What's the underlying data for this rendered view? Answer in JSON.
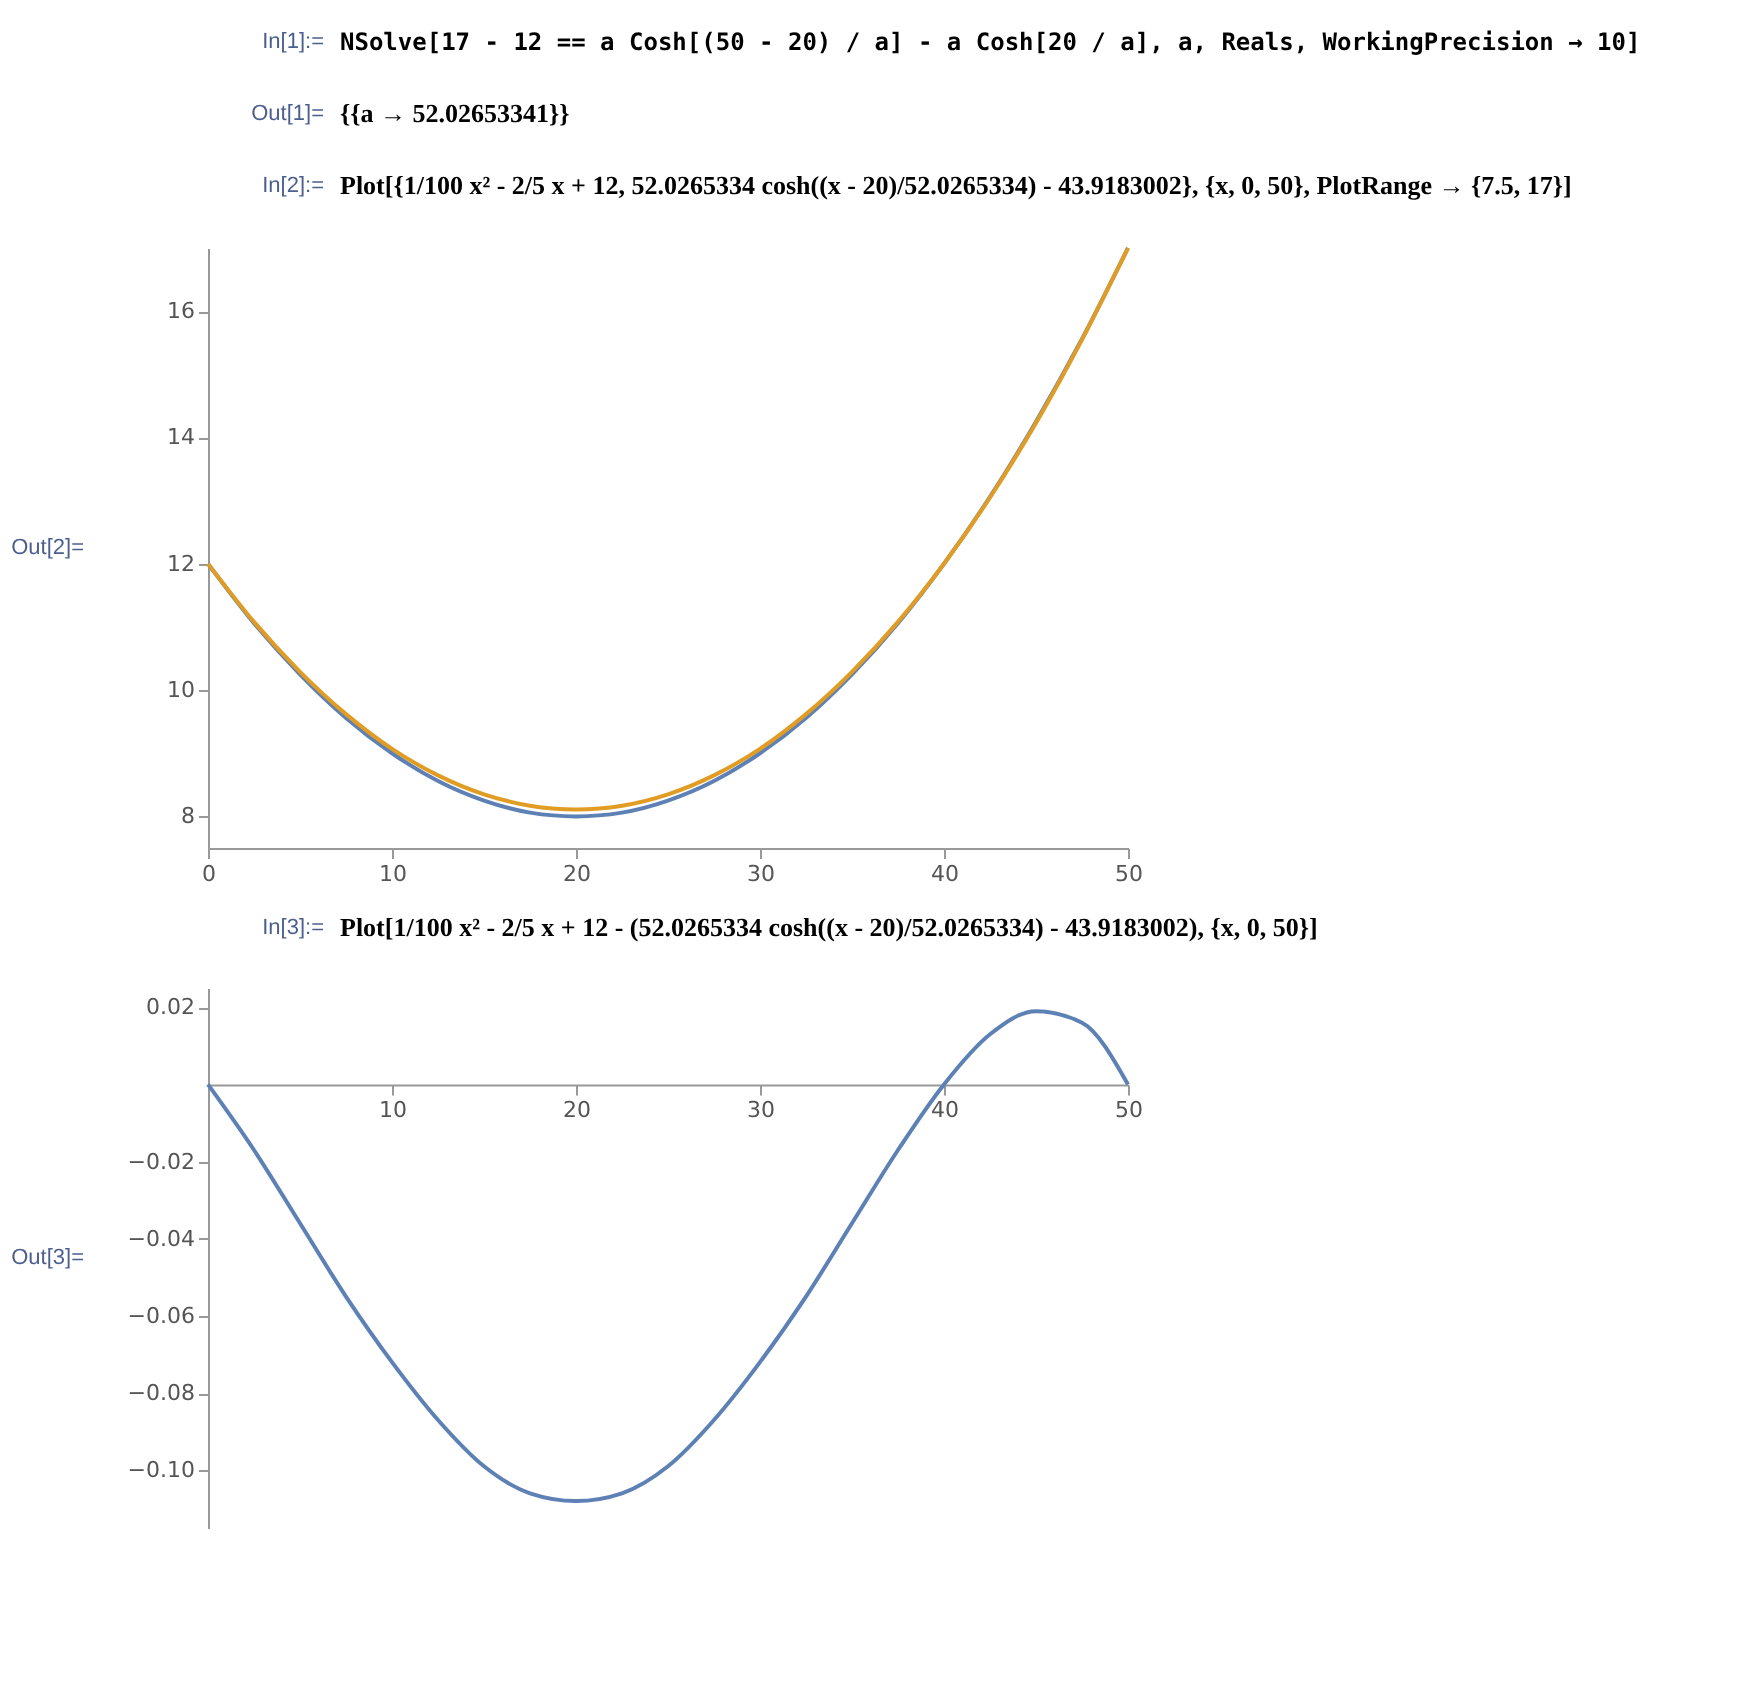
{
  "chart_data": [
    {
      "type": "line",
      "annotations": [
        "In[1]:=",
        "NSolve[17 - 12 == a Cosh[(50 - 20) / a] - a Cosh[20 / a], a, Reals, WorkingPrecision → 10]",
        "Out[1]=",
        "{{a → 52.02653341}}",
        "In[2]:=",
        "Plot[{1/100 x² - 2/5 x + 12, 52.0265334 cosh((x - 20)/52.0265334) - 43.9183002}, {x, 0, 50}, PlotRange → {7.5, 17}]",
        "Out[2]="
      ],
      "x": [
        0,
        2.5,
        5,
        7.5,
        10,
        12.5,
        15,
        17.5,
        20,
        22.5,
        25,
        27.5,
        30,
        32.5,
        35,
        37.5,
        40,
        42.5,
        45,
        47.5,
        50
      ],
      "series": [
        {
          "color": "#5e81b5",
          "values": [
            12,
            11.06,
            10.25,
            9.56,
            9,
            8.56,
            8.25,
            8.06,
            8,
            8.06,
            8.25,
            8.56,
            9,
            9.56,
            10.25,
            11.06,
            12,
            13.06,
            14.25,
            15.56,
            17
          ]
        },
        {
          "color": "#e19c24",
          "values": [
            12,
            11.08,
            10.29,
            9.62,
            9.07,
            8.65,
            8.35,
            8.17,
            8.11,
            8.17,
            8.35,
            8.65,
            9.07,
            9.62,
            10.29,
            11.08,
            12,
            13.05,
            14.23,
            15.55,
            17
          ]
        }
      ],
      "xlim": [
        0,
        50
      ],
      "ylim": [
        7.5,
        17
      ],
      "xticks": [
        0,
        10,
        20,
        30,
        40,
        50
      ],
      "yticks": [
        8,
        10,
        12,
        14,
        16
      ]
    },
    {
      "type": "line",
      "annotations": [
        "In[3]:=",
        "Plot[1/100 x² - 2/5 x + 12 - (52.0265334 cosh((x - 20)/52.0265334) - 43.9183002), {x, 0, 50}]",
        "Out[3]="
      ],
      "x": [
        0,
        2.5,
        5,
        7.5,
        10,
        12.5,
        15,
        17.5,
        20,
        22.5,
        25,
        27.5,
        30,
        32.5,
        35,
        37.5,
        40,
        42.5,
        45,
        47.5,
        50
      ],
      "series": [
        {
          "color": "#5e81b5",
          "values": [
            0,
            -0.017,
            -0.036,
            -0.055,
            -0.072,
            -0.087,
            -0.099,
            -0.106,
            -0.108,
            -0.106,
            -0.099,
            -0.087,
            -0.072,
            -0.055,
            -0.036,
            -0.017,
            0,
            0.013,
            0.019,
            0.016,
            0
          ]
        }
      ],
      "xlim": [
        0,
        50
      ],
      "ylim": [
        -0.115,
        0.025
      ],
      "xticks": [
        10,
        20,
        30,
        40,
        50
      ],
      "yticks": [
        {
          "value": 0.02,
          "label": "0.02"
        },
        {
          "value": -0.02,
          "label": "−0.02"
        },
        {
          "value": -0.04,
          "label": "−0.04"
        },
        {
          "value": -0.06,
          "label": "−0.06"
        },
        {
          "value": -0.08,
          "label": "−0.08"
        },
        {
          "value": -0.1,
          "label": "−0.10"
        }
      ]
    }
  ]
}
